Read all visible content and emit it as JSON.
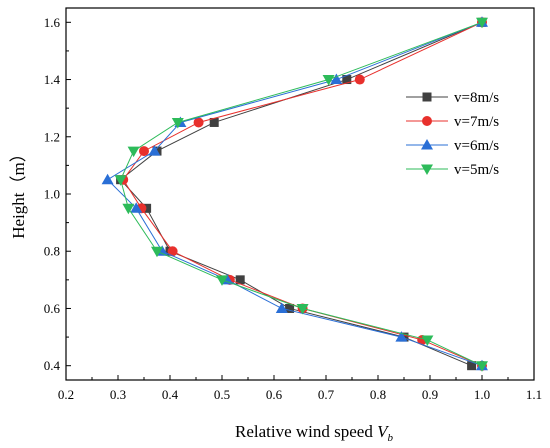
{
  "chart_data": {
    "type": "line",
    "xlabel": "Relative wind speed ",
    "xlabel_symbol": "V",
    "xlabel_subscript": "b",
    "ylabel": "Height（m）",
    "xlim": [
      0.2,
      1.1
    ],
    "ylim": [
      0.35,
      1.65
    ],
    "xticks": [
      "0.2",
      "0.3",
      "0.4",
      "0.5",
      "0.6",
      "0.7",
      "0.8",
      "0.9",
      "1.0",
      "1.1"
    ],
    "yticks": [
      "0.4",
      "0.6",
      "0.8",
      "1.0",
      "1.2",
      "1.4",
      "1.6"
    ],
    "legend_position": "right",
    "series": [
      {
        "name": "v=8m/s",
        "color": "#404040",
        "marker": "square",
        "points": [
          [
            0.98,
            0.4
          ],
          [
            0.85,
            0.5
          ],
          [
            0.63,
            0.6
          ],
          [
            0.535,
            0.7
          ],
          [
            0.4,
            0.8
          ],
          [
            0.355,
            0.95
          ],
          [
            0.305,
            1.05
          ],
          [
            0.375,
            1.15
          ],
          [
            0.485,
            1.25
          ],
          [
            0.74,
            1.4
          ],
          [
            1.0,
            1.6
          ]
        ]
      },
      {
        "name": "v=7m/s",
        "color": "#e8302c",
        "marker": "circle",
        "points": [
          [
            1.0,
            0.4
          ],
          [
            0.885,
            0.49
          ],
          [
            0.655,
            0.6
          ],
          [
            0.515,
            0.7
          ],
          [
            0.405,
            0.8
          ],
          [
            0.345,
            0.95
          ],
          [
            0.31,
            1.05
          ],
          [
            0.35,
            1.15
          ],
          [
            0.455,
            1.25
          ],
          [
            0.765,
            1.4
          ],
          [
            1.0,
            1.6
          ]
        ]
      },
      {
        "name": "v=6m/s",
        "color": "#2a6fd6",
        "marker": "triangle-up",
        "points": [
          [
            1.0,
            0.4
          ],
          [
            0.845,
            0.5
          ],
          [
            0.615,
            0.6
          ],
          [
            0.51,
            0.7
          ],
          [
            0.385,
            0.8
          ],
          [
            0.335,
            0.95
          ],
          [
            0.28,
            1.05
          ],
          [
            0.37,
            1.15
          ],
          [
            0.42,
            1.25
          ],
          [
            0.72,
            1.4
          ],
          [
            1.0,
            1.6
          ]
        ]
      },
      {
        "name": "v=5m/s",
        "color": "#2dbb5a",
        "marker": "triangle-down",
        "points": [
          [
            1.0,
            0.4
          ],
          [
            0.895,
            0.49
          ],
          [
            0.655,
            0.6
          ],
          [
            0.5,
            0.7
          ],
          [
            0.375,
            0.8
          ],
          [
            0.32,
            0.95
          ],
          [
            0.305,
            1.05
          ],
          [
            0.33,
            1.15
          ],
          [
            0.415,
            1.25
          ],
          [
            0.705,
            1.4
          ],
          [
            1.0,
            1.6
          ]
        ]
      }
    ]
  }
}
